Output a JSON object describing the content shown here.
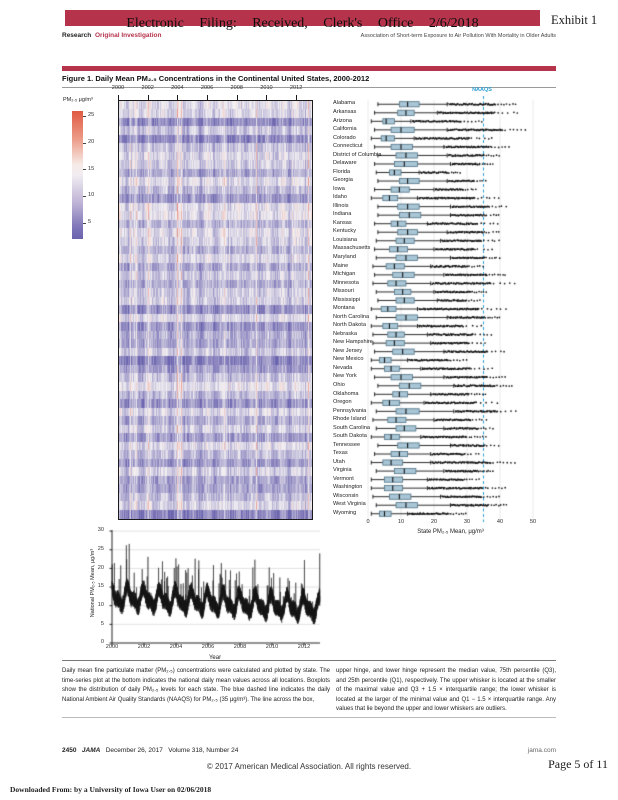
{
  "header": {
    "stamp": "Electronic Filing: Received, Clerk's Office 2/6/2018",
    "exhibit": "Exhibit 1",
    "section": "Research",
    "article_type": "Original Investigation",
    "running_head": "Association of Short-term Exposure to Air Pollution With Mortality in Older Adults"
  },
  "figure": {
    "title": "Figure 1. Daily Mean PM₂.₅ Concentrations in the Continental United States, 2000-2012",
    "caption_left": "Daily mean fine particulate matter (PM₂.₅) concentrations were calculated and plotted by state. The time-series plot at the bottom indicates the national daily mean values across all locations. Boxplots show the distribution of daily PM₂.₅ levels for each state. The blue dashed line indicates the daily National Ambient Air Quality Standards (NAAQS) for PM₂.₅ (35 μg/m³). The line across the box,",
    "caption_right": "upper hinge, and lower hinge represent the median value, 75th percentile (Q3), and 25th percentile (Q1), respectively. The upper whisker is located at the smaller of the maximal value and Q3 + 1.5 × interquartile range; the lower whisker is located at the larger of the minimal value and Q1 − 1.5 × interquartile range. Any values that lie beyond the upper and lower whiskers are outliers."
  },
  "footer": {
    "page_number": "2450",
    "journal": "JAMA",
    "issue_date": "December 26, 2017",
    "volume": "Volume 318, Number 24",
    "site": "jama.com",
    "copyright": "© 2017 American Medical Association. All rights reserved.",
    "page_label": "Page 5 of 11",
    "download_stamp": "Downloaded From:  by a University of Iowa User  on 02/06/2018"
  },
  "chart_data": [
    {
      "type": "heatmap",
      "title": "Daily mean PM₂.₅ by state (rows, alphabetical as in boxplot list) across days 2000-2013 (columns)",
      "x_ticks": [
        2000,
        2002,
        2004,
        2006,
        2008,
        2010,
        2012
      ],
      "x_range": [
        2000,
        2013
      ],
      "colorbar": {
        "label": "PM₂.₅ μg/m³",
        "ticks": [
          25,
          20,
          15,
          10,
          5
        ],
        "value_range": [
          2,
          26
        ],
        "midpoint": 14,
        "color_low": "#6a63ae",
        "color_mid": "#f4f1f3",
        "color_high": "#e05a42"
      }
    },
    {
      "type": "boxplot",
      "orientation": "horizontal",
      "xlabel": "State PM₂.₅ Mean, μg/m³",
      "x_ticks": [
        0,
        10,
        20,
        30,
        40,
        50
      ],
      "xlim": [
        0,
        52
      ],
      "grid": true,
      "naaqs_line": {
        "label": "NAAQS",
        "value": 35,
        "color": "#2d9fd6",
        "style": "dashed"
      },
      "box_fill": "#a9c6d6",
      "box_stroke": "#4e7183",
      "columns": [
        "name",
        "whisker_low",
        "q1",
        "median",
        "q3",
        "whisker_high",
        "outlier_max"
      ],
      "states": [
        [
          "Alabama",
          3,
          9.5,
          12,
          15.5,
          24,
          45
        ],
        [
          "Arkansas",
          2,
          9,
          11.5,
          14,
          21,
          46
        ],
        [
          "Arizona",
          1,
          4.5,
          5.5,
          8,
          13,
          35
        ],
        [
          "California",
          2,
          7,
          10,
          14,
          24,
          48
        ],
        [
          "Colorado",
          1,
          4,
          5.5,
          8,
          14,
          38
        ],
        [
          "Connecticut",
          2,
          7,
          10,
          13.5,
          23,
          43
        ],
        [
          "District of Columbia",
          3,
          8.5,
          11.5,
          15,
          24,
          40
        ],
        [
          "Delaware",
          2,
          8,
          11,
          15,
          25,
          38
        ],
        [
          "Florida",
          2.5,
          6.5,
          8,
          10,
          15.5,
          28
        ],
        [
          "Georgia",
          3,
          9.5,
          12,
          15.5,
          24,
          36
        ],
        [
          "Iowa",
          2,
          7,
          9.5,
          12.5,
          20,
          33
        ],
        [
          "Idaho",
          1,
          4.5,
          6.5,
          9,
          15,
          40
        ],
        [
          "Illinois",
          3,
          9,
          12,
          15.5,
          25,
          42
        ],
        [
          "Indiana",
          3,
          9.5,
          12.5,
          16,
          25,
          40
        ],
        [
          "Kansas",
          2,
          7,
          9,
          11.5,
          18,
          40
        ],
        [
          "Kentucky",
          3,
          9,
          12,
          15,
          24,
          40
        ],
        [
          "Louisiana",
          2.5,
          8.5,
          11,
          14,
          22,
          40
        ],
        [
          "Massachusetts",
          2,
          6.5,
          9,
          12,
          20,
          38
        ],
        [
          "Maryland",
          2.5,
          8.5,
          11.5,
          15,
          25,
          40
        ],
        [
          "Maine",
          1.5,
          5.5,
          8,
          11,
          19,
          35
        ],
        [
          "Michigan",
          2,
          7.5,
          10.5,
          14,
          23,
          42
        ],
        [
          "Minnesota",
          1.5,
          6,
          8.5,
          11.5,
          19,
          45
        ],
        [
          "Missouri",
          2.5,
          8,
          10.5,
          13,
          20,
          36
        ],
        [
          "Mississippi",
          3,
          8.5,
          11,
          14,
          21,
          34
        ],
        [
          "Montana",
          1,
          4,
          6,
          8.5,
          15,
          42
        ],
        [
          "North Carolina",
          2.5,
          8.5,
          11.5,
          15,
          24,
          40
        ],
        [
          "North Dakota",
          1,
          4.5,
          6.5,
          9,
          15,
          35
        ],
        [
          "Nebraska",
          1.5,
          6,
          8.5,
          11,
          18,
          38
        ],
        [
          "New Hampshire",
          1.5,
          5.5,
          8,
          11,
          19,
          36
        ],
        [
          "New Jersey",
          2,
          7.5,
          10.5,
          14,
          23,
          42
        ],
        [
          "New Mexico",
          1,
          3.5,
          5,
          7,
          12,
          30
        ],
        [
          "Nevada",
          1,
          5,
          7,
          9.5,
          16,
          38
        ],
        [
          "New York",
          2,
          7,
          10,
          13.5,
          23,
          42
        ],
        [
          "Ohio",
          3,
          9.5,
          12.5,
          16,
          26,
          44
        ],
        [
          "Oklahoma",
          2,
          7.5,
          9.5,
          12,
          19,
          36
        ],
        [
          "Oregon",
          1,
          4.5,
          6.5,
          9.5,
          17,
          40
        ],
        [
          "Pennsylvania",
          2.5,
          8.5,
          11.5,
          15.5,
          26,
          45
        ],
        [
          "Rhode Island",
          1.5,
          6,
          8.5,
          11.5,
          20,
          36
        ],
        [
          "South Carolina",
          2.5,
          8.5,
          11,
          14.5,
          23,
          38
        ],
        [
          "South Dakota",
          1,
          5,
          7,
          9.5,
          16,
          36
        ],
        [
          "Tennessee",
          3,
          9,
          12,
          15.5,
          25,
          40
        ],
        [
          "Texas",
          2,
          7,
          9.5,
          12,
          19,
          34
        ],
        [
          "Utah",
          1,
          4.5,
          7,
          10.5,
          19,
          45
        ],
        [
          "Virginia",
          2.5,
          8,
          11,
          14.5,
          23,
          38
        ],
        [
          "Vermont",
          1,
          5,
          7.5,
          10.5,
          18,
          34
        ],
        [
          "Washington",
          1,
          5,
          7.5,
          10.5,
          18,
          42
        ],
        [
          "Wisconsin",
          1.5,
          6.5,
          9.5,
          13,
          22,
          40
        ],
        [
          "West Virginia",
          2.5,
          8.5,
          11.5,
          15,
          25,
          42
        ],
        [
          "Wyoming",
          1,
          3.5,
          5,
          7,
          12,
          30
        ]
      ]
    },
    {
      "type": "line",
      "xlabel": "Year",
      "ylabel": "National PM₂.₅ Mean, μg/m³",
      "x_ticks": [
        2000,
        2002,
        2004,
        2006,
        2008,
        2010,
        2012
      ],
      "y_ticks": [
        0,
        5,
        10,
        15,
        20,
        25,
        30
      ],
      "ylim": [
        0,
        30
      ],
      "x_range": [
        2000,
        2013
      ],
      "grid": true,
      "color": "#151515",
      "description": "Noisy daily national mean PM₂.₅ series oscillating ~5-25 μg/m³ with seasonal peaks, declining slightly from ~13 in 2000 to ~9 in 2012"
    }
  ]
}
